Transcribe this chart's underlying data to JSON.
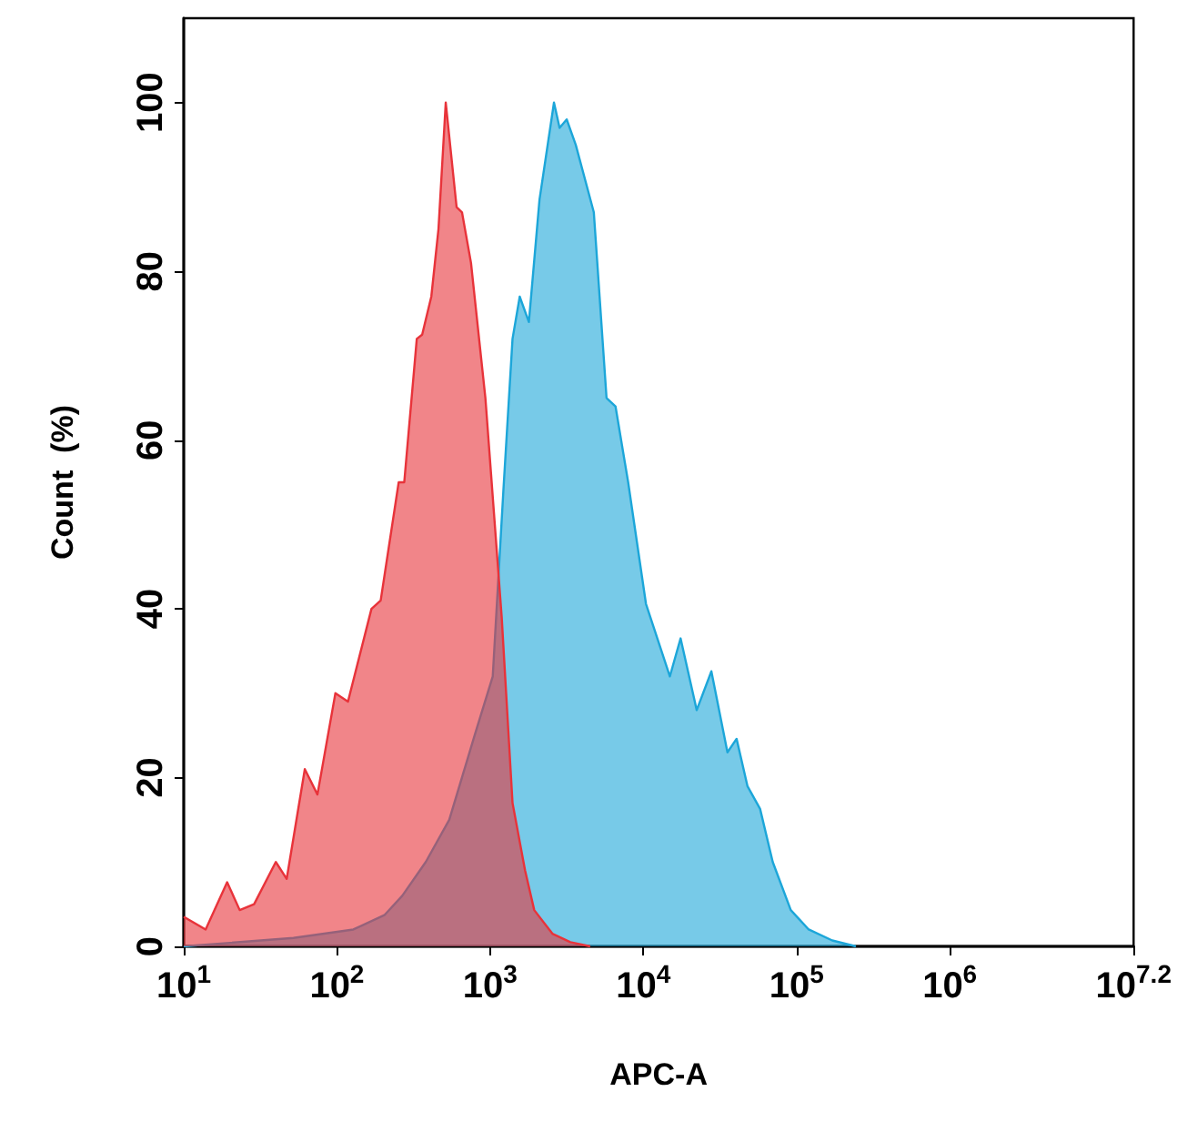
{
  "chart_data": {
    "type": "area",
    "xlabel": "APC-A",
    "ylabel": "Count  (%)",
    "log": "x",
    "marker": "none",
    "xlim": [
      10,
      15848932
    ],
    "ylim": [
      0,
      110
    ],
    "xticks": [
      {
        "value": 10,
        "label": "10$^{1}$"
      },
      {
        "value": 100,
        "label": "10$^{2}$"
      },
      {
        "value": 1000,
        "label": "10$^{3}$"
      },
      {
        "value": 10000,
        "label": "10$^{4}$"
      },
      {
        "value": 100000,
        "label": "10$^{5}$"
      },
      {
        "value": 1000000,
        "label": "10$^{6}$"
      },
      {
        "value": 15848932,
        "label": "10$^{7.2}$"
      }
    ],
    "yticks": [
      0,
      20,
      40,
      60,
      80,
      100
    ],
    "series": [
      {
        "color": "#1ca6d9",
        "x": [
          10,
          52,
          128,
          204,
          267,
          380,
          541,
          792,
          1040,
          1220,
          1400,
          1560,
          1790,
          2100,
          2610,
          2840,
          3160,
          3620,
          4750,
          5750,
          6580,
          7960,
          10400,
          14900,
          17500,
          22300,
          27800,
          35400,
          40600,
          47800,
          57800,
          69900,
          91700,
          120000,
          171000,
          244000
        ],
        "values": [
          0,
          1,
          2,
          3.7,
          6,
          10,
          15,
          25,
          32,
          54,
          72,
          77,
          74,
          88.5,
          100,
          97,
          98,
          95,
          87,
          65,
          64,
          55,
          40.6,
          32,
          36.5,
          28,
          32.6,
          23,
          24.6,
          19,
          16.3,
          10,
          4.3,
          2,
          0.7,
          0
        ]
      },
      {
        "color": "#e8333a",
        "x": [
          10,
          13.9,
          19.2,
          23.2,
          28.8,
          39.9,
          47,
          61.7,
          74.6,
          97.7,
          118,
          168,
          193,
          253,
          275,
          332,
          360,
          413,
          460,
          513,
          604,
          655,
          750,
          931,
          1190,
          1400,
          1690,
          1940,
          2550,
          3340,
          4500
        ],
        "values": [
          3.5,
          2,
          7.6,
          4.3,
          5,
          10,
          8,
          21,
          18,
          30,
          29,
          40,
          41,
          55,
          55,
          72,
          72.5,
          77,
          85,
          100,
          87.6,
          87,
          81,
          65,
          39,
          17,
          9,
          4.3,
          1.5,
          0.5,
          0
        ]
      }
    ]
  }
}
